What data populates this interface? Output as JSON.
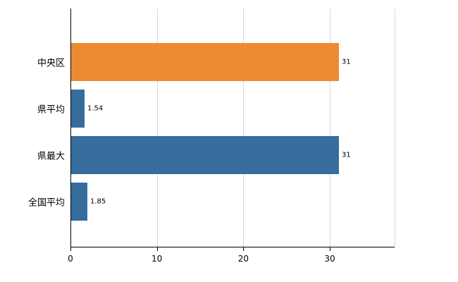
{
  "chart_data": {
    "type": "bar",
    "orientation": "horizontal",
    "title": "",
    "xlabel": "",
    "ylabel": "",
    "categories": [
      "中央区",
      "県平均",
      "県最大",
      "全国平均"
    ],
    "values": [
      31,
      1.54,
      31,
      1.85
    ],
    "value_labels": [
      "31",
      "1.54",
      "31",
      "1.85"
    ],
    "bar_colors": [
      "#ED8B33",
      "#376C9F",
      "#376C9F",
      "#376C9F"
    ],
    "x_ticks": [
      0,
      10,
      20,
      30
    ],
    "x_tick_labels": [
      "0",
      "10",
      "20",
      "30"
    ],
    "xlim": [
      0,
      37.5
    ],
    "grid": true,
    "legend": "none",
    "colors": {
      "gridline": "#d9d9d9",
      "axis": "#000000",
      "text": "#000000",
      "background": "#ffffff",
      "highlight_bar": "#ED8B33",
      "default_bar": "#376C9F"
    }
  }
}
